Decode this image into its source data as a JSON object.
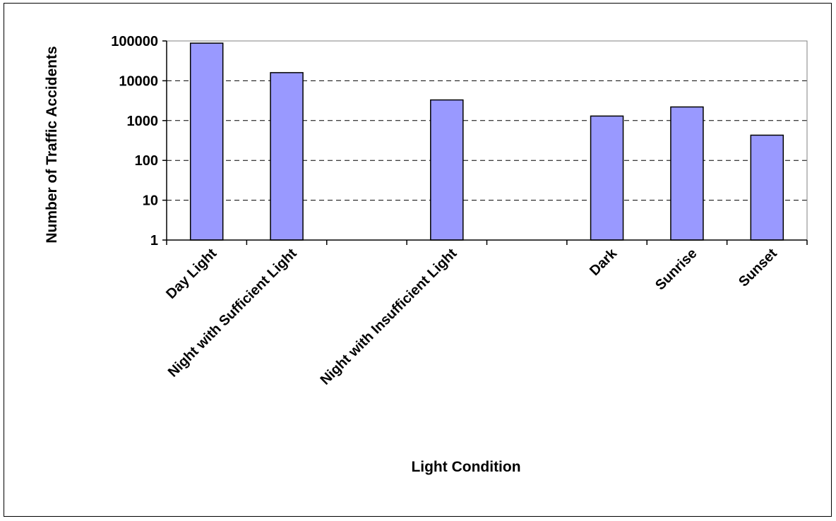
{
  "chart_data": {
    "type": "bar",
    "title": "",
    "xlabel": "Light Condition",
    "ylabel": "Number of Traffic Accidents",
    "yscale": "log",
    "ylim": [
      1,
      100000
    ],
    "yticks": [
      "1",
      "10",
      "100",
      "1000",
      "10000",
      "100000"
    ],
    "grid": true,
    "categories": [
      "Day Light",
      "Night with Sufficient Light",
      "",
      "Night with Insufficient Light",
      "",
      "Dark",
      "Sunrise",
      "Sunset"
    ],
    "values": [
      88000,
      16000,
      null,
      3300,
      null,
      1300,
      2200,
      430
    ],
    "bar_color": "#9999FF"
  }
}
